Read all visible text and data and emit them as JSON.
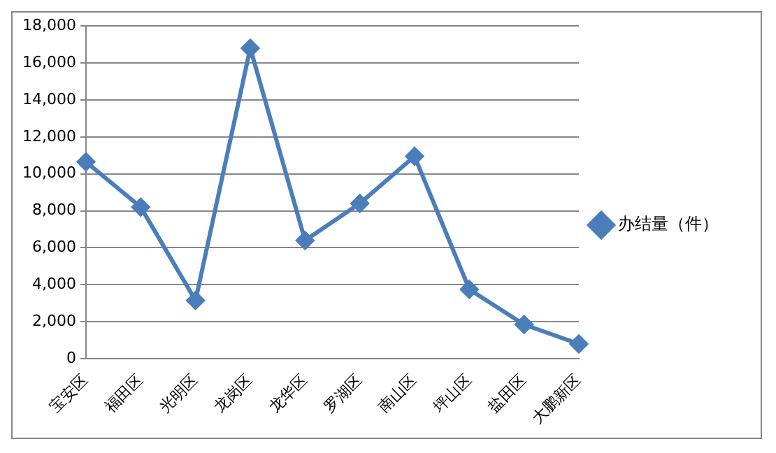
{
  "chart_data": {
    "type": "line",
    "categories": [
      "宝安区",
      "福田区",
      "光明区",
      "龙岗区",
      "龙华区",
      "罗湖区",
      "南山区",
      "坪山区",
      "盐田区",
      "大鹏新区"
    ],
    "series": [
      {
        "name": "办结量（件）",
        "color": "#4a7ebb",
        "values": [
          10650,
          8200,
          3150,
          16800,
          6400,
          8400,
          10950,
          3750,
          1850,
          800
        ]
      }
    ],
    "ylim": [
      0,
      18000
    ],
    "yticks": [
      0,
      {
        "value": 2000,
        "label": "2,000"
      },
      {
        "value": 4000,
        "label": "4,000"
      },
      {
        "value": 6000,
        "label": "6,000"
      },
      {
        "value": 8000,
        "label": "8,000"
      },
      {
        "value": 10000,
        "label": "10,000"
      },
      {
        "value": 12000,
        "label": "12,000"
      },
      {
        "value": 14000,
        "label": "14,000"
      },
      {
        "value": 16000,
        "label": "16,000"
      },
      {
        "value": 18000,
        "label": "18,000"
      }
    ],
    "grid": "y",
    "legend": "right",
    "marker": "diamond",
    "line_style": "solid"
  }
}
